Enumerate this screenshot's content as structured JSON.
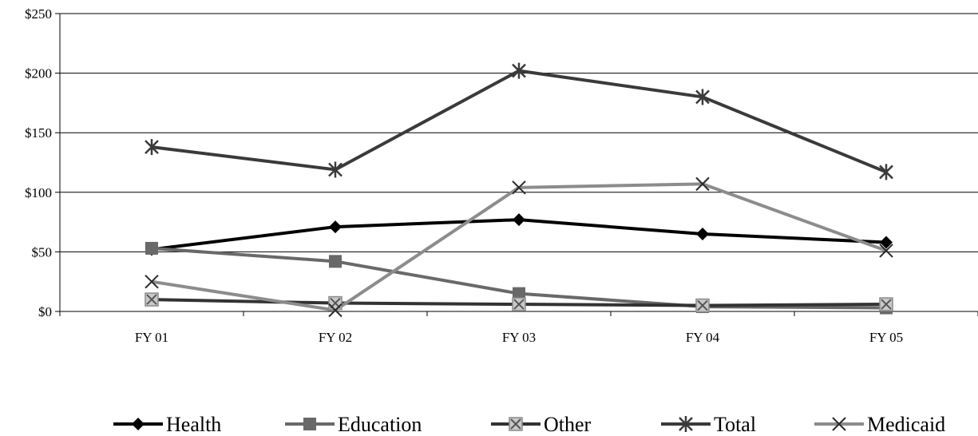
{
  "chart_data": {
    "type": "line",
    "title": "",
    "xlabel": "",
    "ylabel": "",
    "categories": [
      "FY 01",
      "FY 02",
      "FY 03",
      "FY 04",
      "FY 05"
    ],
    "ylim": [
      0,
      250
    ],
    "yticks": [
      0,
      50,
      100,
      150,
      200,
      250
    ],
    "ytick_labels": [
      "$0",
      "$50",
      "$100",
      "$150",
      "$200",
      "$250"
    ],
    "grid": true,
    "legend": "bottom",
    "series": [
      {
        "name": "Health",
        "values": [
          52,
          71,
          77,
          65,
          58
        ],
        "color": "#000000",
        "marker": "diamond"
      },
      {
        "name": "Education",
        "values": [
          53,
          42,
          15,
          4,
          3
        ],
        "color": "#696969",
        "marker": "square"
      },
      {
        "name": "Other",
        "values": [
          10,
          7,
          6,
          5,
          6
        ],
        "color": "#333333",
        "marker": "boxed-x"
      },
      {
        "name": "Total",
        "values": [
          138,
          119,
          202,
          180,
          117
        ],
        "color": "#3a3a3a",
        "marker": "star"
      },
      {
        "name": "Medicaid",
        "values": [
          25,
          1,
          104,
          107,
          51
        ],
        "color": "#8c8c8c",
        "marker": "x"
      }
    ]
  }
}
